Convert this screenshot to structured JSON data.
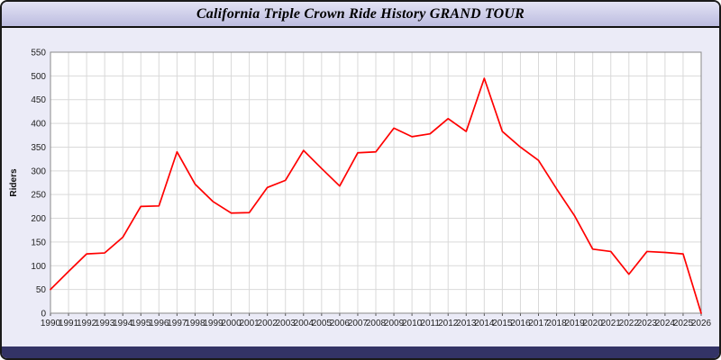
{
  "title": "California Triple Crown Ride History GRAND TOUR",
  "colors": {
    "line": "#ff0000",
    "grid": "#d9d9d9",
    "plot_background": "#ffffff",
    "plot_border": "#888888",
    "window_background": "#ebebf7",
    "titlebar_background": "#ccccec",
    "bottom_bar": "#333366",
    "axis_text": "#222222"
  },
  "chart_data": {
    "type": "line",
    "title": "California Triple Crown Ride History GRAND TOUR",
    "xlabel": "",
    "ylabel": "Riders",
    "ylim": [
      0,
      550
    ],
    "ytick_step": 50,
    "grid": true,
    "legend": "none",
    "line_color": "#ff0000",
    "grid_color": "#d9d9d9",
    "plot_bg": "#ffffff",
    "x": [
      1990,
      1991,
      1992,
      1993,
      1994,
      1995,
      1996,
      1997,
      1998,
      1999,
      2000,
      2001,
      2002,
      2003,
      2004,
      2005,
      2006,
      2007,
      2008,
      2009,
      2010,
      2011,
      2012,
      2013,
      2014,
      2015,
      2016,
      2017,
      2018,
      2019,
      2020,
      2021,
      2022,
      2023,
      2024,
      2025,
      2026
    ],
    "values": [
      50,
      88,
      125,
      127,
      160,
      225,
      226,
      340,
      272,
      235,
      211,
      212,
      265,
      280,
      343,
      305,
      268,
      338,
      340,
      390,
      372,
      378,
      410,
      383,
      495,
      383,
      350,
      322,
      262,
      205,
      135,
      130,
      82,
      130,
      128,
      125,
      0
    ]
  }
}
